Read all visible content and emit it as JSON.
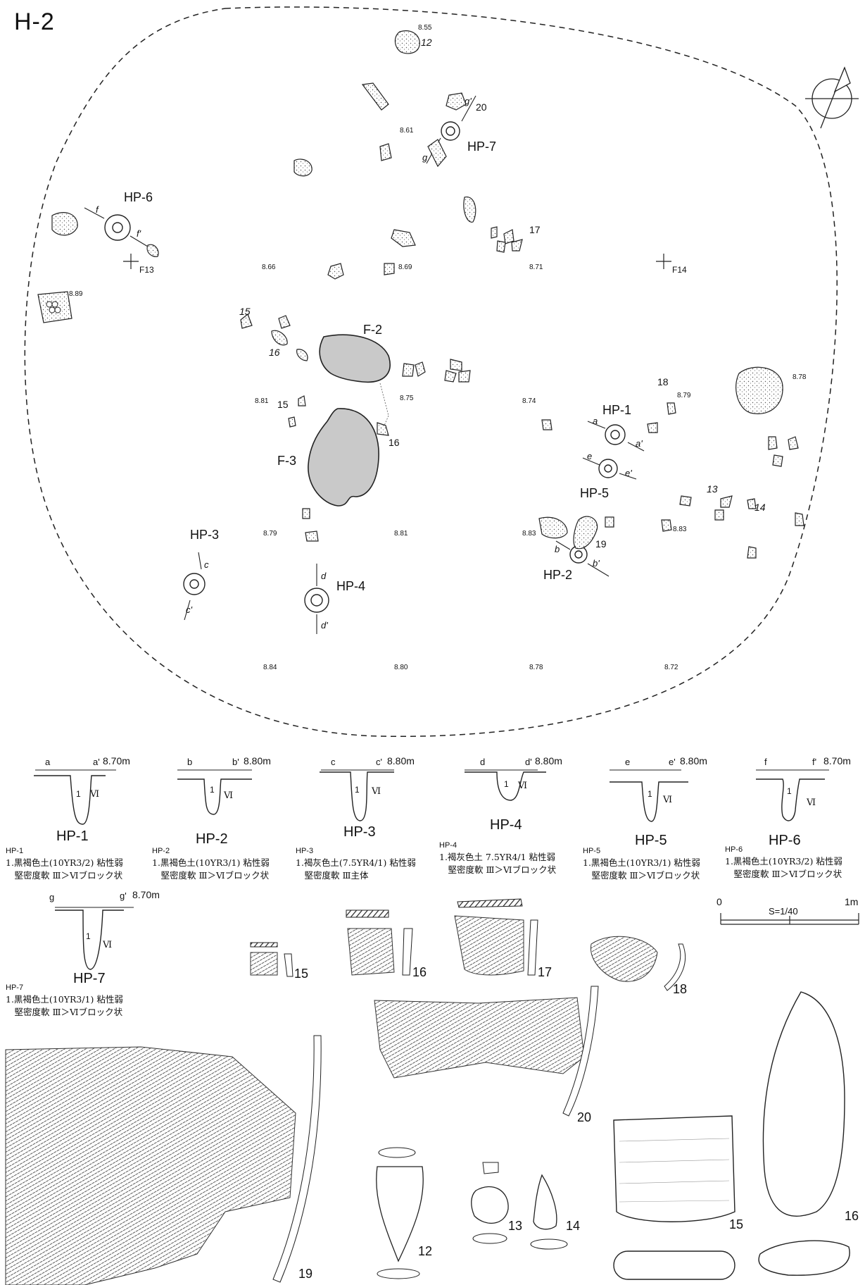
{
  "title": "H-2",
  "plan": {
    "features": {
      "F2": "F-2",
      "F3": "F-3"
    },
    "grid_labels": {
      "F13": "F13",
      "F14": "F14"
    },
    "pit_labels": {
      "HP1": "HP-1",
      "HP2": "HP-2",
      "HP3": "HP-3",
      "HP4": "HP-4",
      "HP5": "HP-5",
      "HP6": "HP-6",
      "HP7": "HP-7"
    },
    "section_marks": {
      "a": "a",
      "a2": "a'",
      "b": "b",
      "b2": "b'",
      "c": "c",
      "c2": "c'",
      "d": "d",
      "d2": "d'",
      "e": "e",
      "e2": "e'",
      "f": "f",
      "f2": "f'",
      "g": "g",
      "g2": "g'"
    },
    "elevations": [
      "8.55",
      "8.61",
      "8.66",
      "8.69",
      "8.71",
      "8.89",
      "8.81",
      "8.75",
      "8.74",
      "8.79",
      "8.78",
      "8.79",
      "8.81",
      "8.83",
      "8.83",
      "8.84",
      "8.80",
      "8.78",
      "8.72"
    ],
    "artifact_numbers": [
      "12",
      "20",
      "17",
      "15",
      "16",
      "15",
      "16",
      "18",
      "13",
      "14",
      "19"
    ]
  },
  "sections": [
    {
      "pit": "HP-1",
      "left": "a",
      "right": "a'",
      "elev": "8.70m",
      "fill": "1",
      "layer": "Ⅵ",
      "head": "HP-1",
      "line1": "1.黒褐色土(10YR3/2) 粘性弱",
      "line2": "　堅密度軟 Ⅲ＞Ⅵブロック状"
    },
    {
      "pit": "HP-2",
      "left": "b",
      "right": "b'",
      "elev": "8.80m",
      "fill": "1",
      "layer": "Ⅵ",
      "head": "HP-2",
      "line1": "1.黒褐色土(10YR3/1) 粘性弱",
      "line2": "　堅密度軟 Ⅲ＞Ⅵブロック状"
    },
    {
      "pit": "HP-3",
      "left": "c",
      "right": "c'",
      "elev": "8.80m",
      "fill": "1",
      "layer": "Ⅵ",
      "head": "HP-3",
      "line1": "1.褐灰色土(7.5YR4/1) 粘性弱",
      "line2": "　堅密度軟 Ⅲ主体"
    },
    {
      "pit": "HP-4",
      "left": "d",
      "right": "d'",
      "elev": "8.80m",
      "fill": "1",
      "layer": "Ⅵ",
      "head": "HP-4",
      "line1": "1.褐灰色土 7.5YR4/1 粘性弱",
      "line2": "　堅密度軟 Ⅲ＞Ⅵブロック状"
    },
    {
      "pit": "HP-5",
      "left": "e",
      "right": "e'",
      "elev": "8.80m",
      "fill": "1",
      "layer": "Ⅵ",
      "head": "HP-5",
      "line1": "1.黒褐色土(10YR3/1) 粘性弱",
      "line2": "　堅密度軟 Ⅲ＞Ⅵブロック状"
    },
    {
      "pit": "HP-6",
      "left": "f",
      "right": "f'",
      "elev": "8.70m",
      "fill": "1",
      "layer": "Ⅵ",
      "head": "HP-6",
      "line1": "1.黒褐色土(10YR3/2) 粘性弱",
      "line2": "　堅密度軟 Ⅲ＞Ⅵブロック状"
    },
    {
      "pit": "HP-7",
      "left": "g",
      "right": "g'",
      "elev": "8.70m",
      "fill": "1",
      "layer": "Ⅵ",
      "head": "HP-7",
      "line1": "1.黒褐色土(10YR3/1) 粘性弱",
      "line2": "　堅密度軟 Ⅲ＞Ⅵブロック状"
    }
  ],
  "scale": {
    "zero": "0",
    "ratio": "S=1/40",
    "one": "1m"
  },
  "finds": {
    "n15a": "15",
    "n16a": "16",
    "n17": "17",
    "n18": "18",
    "n19": "19",
    "n20": "20",
    "n12": "12",
    "n13": "13",
    "n14": "14",
    "n15b": "15",
    "n16b": "16"
  }
}
